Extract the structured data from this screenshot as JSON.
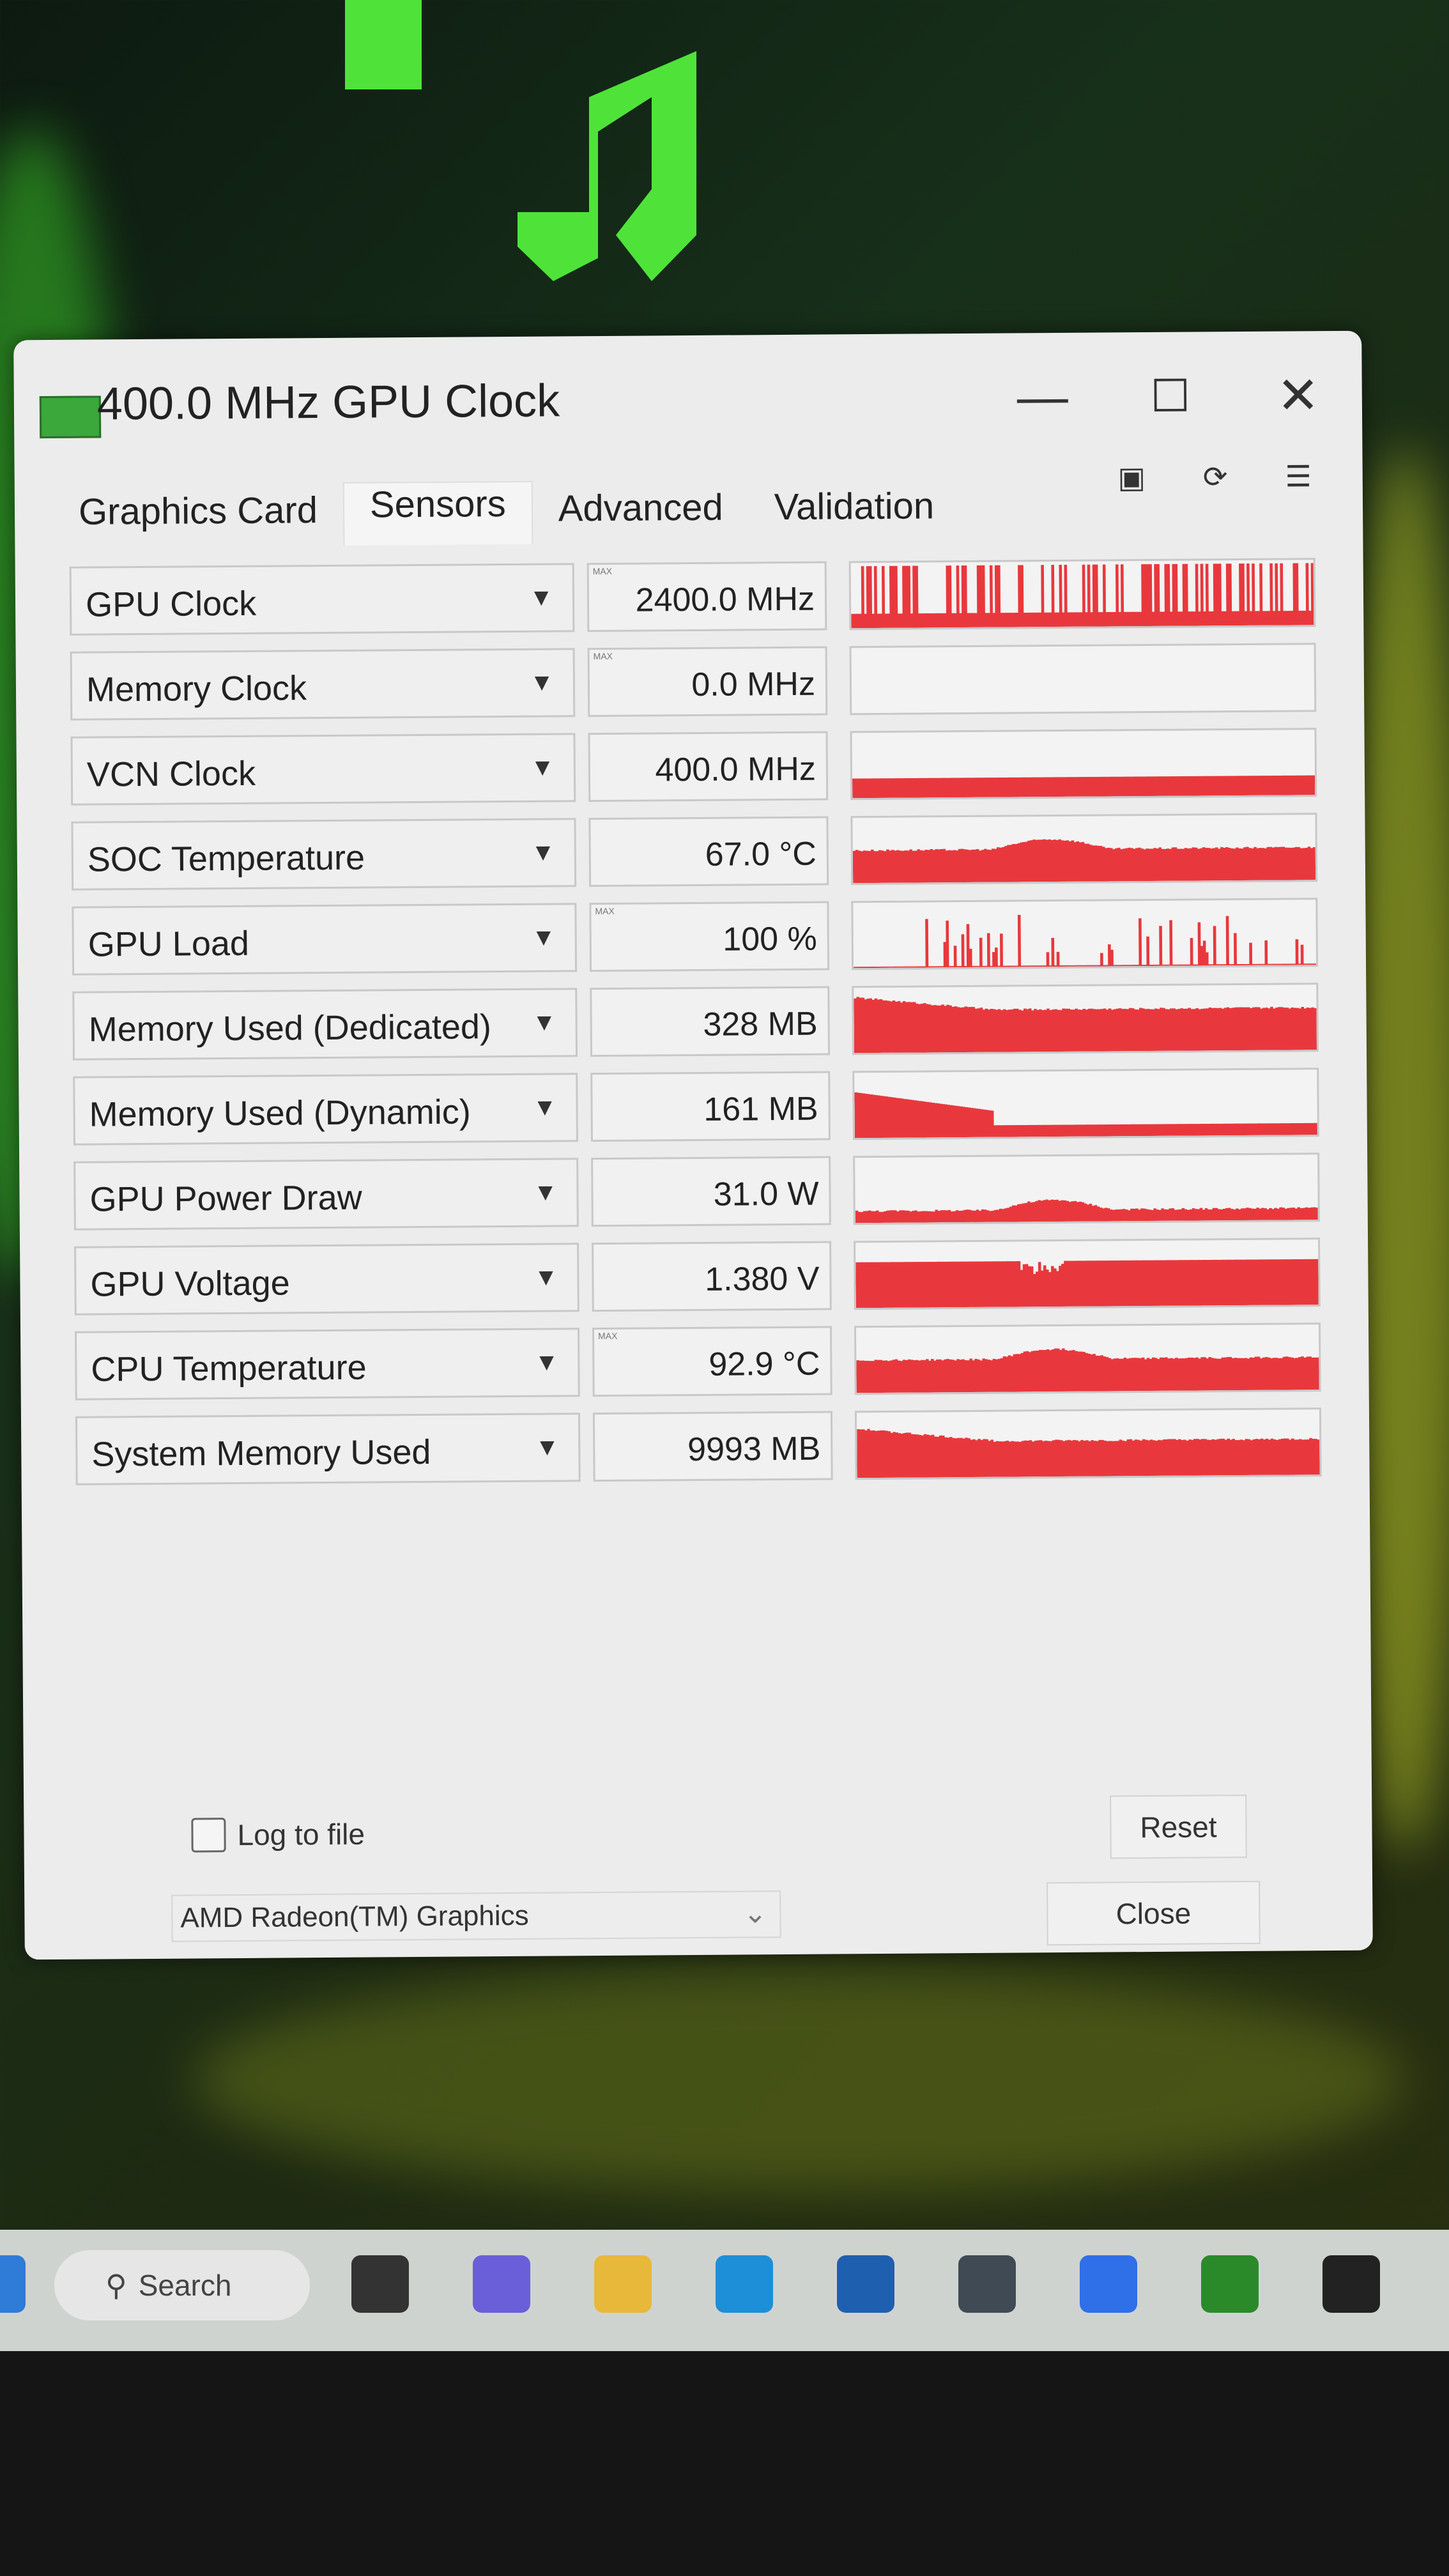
{
  "window": {
    "title": "400.0 MHz GPU Clock",
    "controls": {
      "minimize": "—",
      "maximize": "☐",
      "close": "✕"
    }
  },
  "tabs": [
    {
      "label": "Graphics Card",
      "active": false
    },
    {
      "label": "Sensors",
      "active": true
    },
    {
      "label": "Advanced",
      "active": false
    },
    {
      "label": "Validation",
      "active": false
    }
  ],
  "toolbar_icons": [
    "camera-icon",
    "refresh-icon",
    "menu-icon"
  ],
  "max_tag": "MAX",
  "graph_color": "#e8383d",
  "sensors": [
    {
      "name": "GPU Clock",
      "value": "2400.0 MHz",
      "max": true,
      "graph_style": "spiky",
      "graph_level": 0.25
    },
    {
      "name": "Memory Clock",
      "value": "0.0 MHz",
      "max": true,
      "graph_style": "empty",
      "graph_level": 0
    },
    {
      "name": "VCN Clock",
      "value": "400.0 MHz",
      "max": false,
      "graph_style": "flat",
      "graph_level": 0.3
    },
    {
      "name": "SOC Temperature",
      "value": "67.0 °C",
      "max": false,
      "graph_style": "bump",
      "graph_level": 0.5
    },
    {
      "name": "GPU Load",
      "value": "100 %",
      "max": true,
      "graph_style": "sparse",
      "graph_level": 0.02
    },
    {
      "name": "Memory Used (Dedicated)",
      "value": "328 MB",
      "max": false,
      "graph_style": "decline",
      "graph_level": 0.65
    },
    {
      "name": "Memory Used (Dynamic)",
      "value": "161 MB",
      "max": false,
      "graph_style": "step",
      "graph_level": 0.18
    },
    {
      "name": "GPU Power Draw",
      "value": "31.0 W",
      "max": false,
      "graph_style": "bump",
      "graph_level": 0.18
    },
    {
      "name": "GPU Voltage",
      "value": "1.380 V",
      "max": false,
      "graph_style": "dip",
      "graph_level": 0.7
    },
    {
      "name": "CPU Temperature",
      "value": "92.9 °C",
      "max": true,
      "graph_style": "bump",
      "graph_level": 0.5
    },
    {
      "name": "System Memory Used",
      "value": "9993 MB",
      "max": false,
      "graph_style": "decline",
      "graph_level": 0.55
    }
  ],
  "footer": {
    "log_to_file": {
      "label": "Log to file",
      "checked": false
    },
    "reset_label": "Reset",
    "close_label": "Close",
    "device_select": "AMD Radeon(TM) Graphics"
  },
  "taskbar": {
    "search_label": "Search",
    "apps": [
      "terminal-icon",
      "teams-icon",
      "file-explorer-icon",
      "edge-icon",
      "store-icon",
      "app-icon",
      "azure-icon",
      "xbox-icon",
      "sgw-icon"
    ]
  }
}
